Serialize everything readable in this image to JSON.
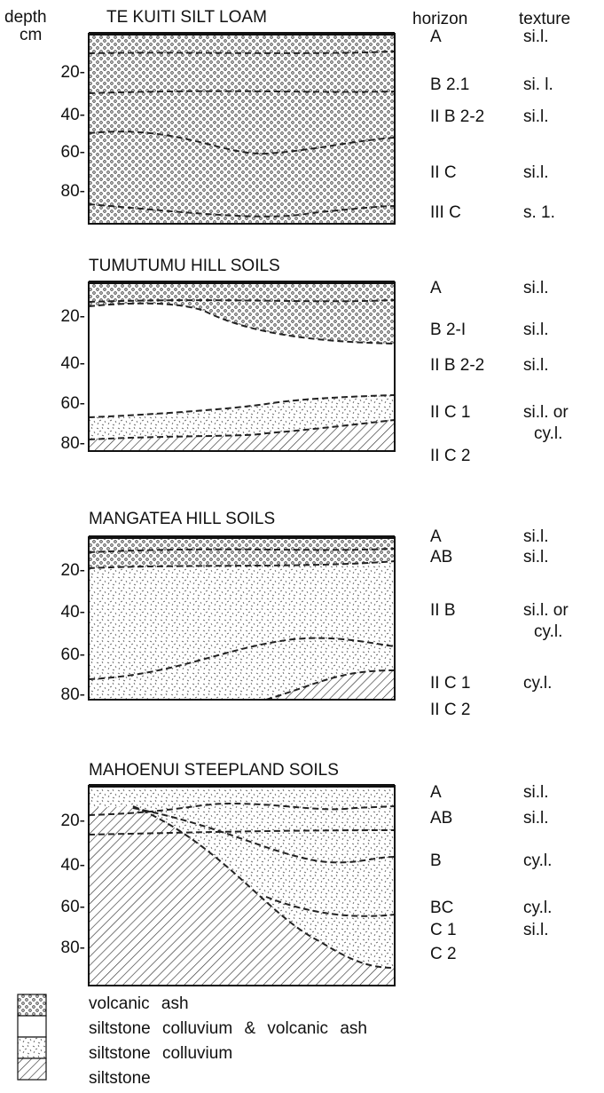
{
  "header": {
    "depth": "depth",
    "cm": "cm",
    "horizon": "horizon",
    "texture": "texture"
  },
  "profiles": [
    {
      "title": "TE KUITI SILT LOAM",
      "depths": [
        "20-",
        "40-",
        "60-",
        "80-"
      ],
      "horizons": [
        {
          "label": "A",
          "texture": [
            "si.l."
          ]
        },
        {
          "label": "B 2.1",
          "texture": [
            "si. l."
          ]
        },
        {
          "label": "II B 2-2",
          "texture": [
            "si.l."
          ]
        },
        {
          "label": "II C",
          "texture": [
            "si.l."
          ]
        },
        {
          "label": "III C",
          "texture": [
            "s. 1."
          ]
        }
      ]
    },
    {
      "title": "TUMUTUMU HILL SOILS",
      "depths": [
        "20-",
        "40-",
        "60-",
        "80-"
      ],
      "horizons": [
        {
          "label": "A",
          "texture": [
            "si.l."
          ]
        },
        {
          "label": "B 2-I",
          "texture": [
            "si.l."
          ]
        },
        {
          "label": "II B 2-2",
          "texture": [
            "si.l."
          ]
        },
        {
          "label": "II C 1",
          "texture": [
            "si.l. or",
            "cy.l."
          ]
        },
        {
          "label": "II C 2",
          "texture": []
        }
      ]
    },
    {
      "title": "MANGATEA HILL SOILS",
      "depths": [
        "20-",
        "40-",
        "60-",
        "80-"
      ],
      "horizons": [
        {
          "label": "A",
          "texture": [
            "si.l."
          ]
        },
        {
          "label": "AB",
          "texture": [
            "si.l."
          ]
        },
        {
          "label": "II B",
          "texture": [
            "si.l. or",
            "cy.l."
          ]
        },
        {
          "label": "II C 1",
          "texture": [
            "cy.l."
          ]
        },
        {
          "label": "II C 2",
          "texture": []
        }
      ]
    },
    {
      "title": "MAHOENUI STEEPLAND SOILS",
      "depths": [
        "20-",
        "40-",
        "60-",
        "80-"
      ],
      "horizons": [
        {
          "label": "A",
          "texture": [
            "si.l."
          ]
        },
        {
          "label": "AB",
          "texture": [
            "si.l."
          ]
        },
        {
          "label": "B",
          "texture": [
            "cy.l."
          ]
        },
        {
          "label": "BC",
          "texture": [
            "cy.l."
          ]
        },
        {
          "label": "C 1",
          "texture": [
            "si.l."
          ]
        },
        {
          "label": "C 2",
          "texture": []
        }
      ]
    }
  ],
  "legend": [
    "volcanic ash",
    "siltstone colluvium & volcanic ash",
    "siltstone colluvium",
    "siltstone"
  ]
}
